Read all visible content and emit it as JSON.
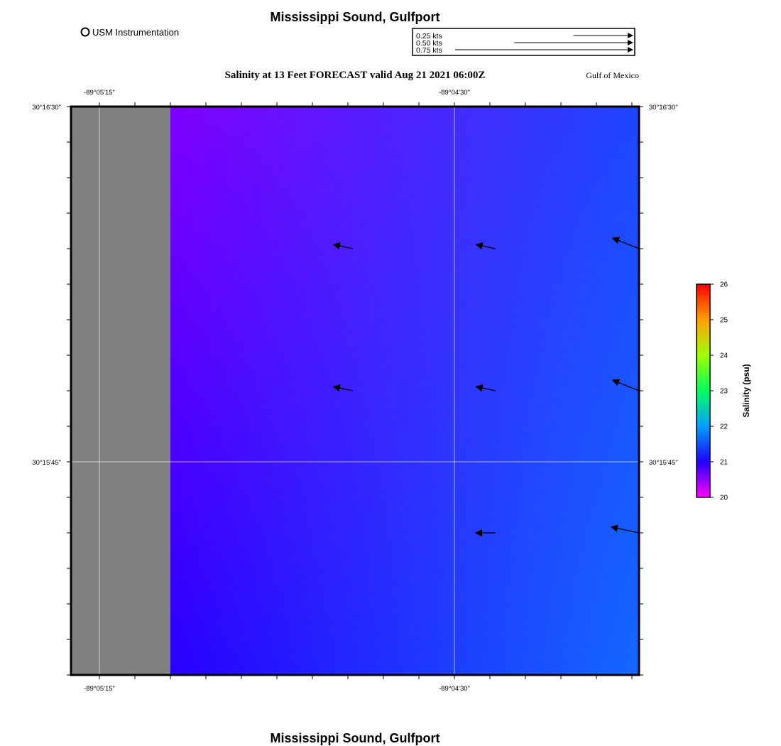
{
  "header": {
    "title": "Mississippi Sound, Gulfport",
    "instrument_label": "USM Instrumentation",
    "subtitle": "Salinity at 13 Feet FORECAST valid Aug 21 2021 06:00Z",
    "region_label": "Gulf of Mexico"
  },
  "footer": {
    "title": "Mississippi Sound, Gulfport"
  },
  "vector_legend": {
    "items": [
      {
        "label": "0.25 kts",
        "speed_kts": 0.25
      },
      {
        "label": "0.50 kts",
        "speed_kts": 0.5
      },
      {
        "label": "0.75 kts",
        "speed_kts": 0.75
      }
    ]
  },
  "axes": {
    "x_ticks": [
      "-89°05'15\"",
      "-89°04'30\""
    ],
    "y_ticks": [
      "30°16'30\"",
      "30°15'45\""
    ]
  },
  "colorbar": {
    "label": "Salinity (psu)",
    "ticks": [
      "20",
      "21",
      "22",
      "23",
      "24",
      "25",
      "26"
    ],
    "min": 20,
    "max": 26
  },
  "colors": {
    "land": "#808080",
    "water_nw": "#8000ff",
    "water_sw": "#2800ff",
    "water_se": "#1468ff",
    "water_ne": "#1e46ff",
    "frame": "#000000",
    "gridline": "#ffffff"
  },
  "current_vectors": [
    {
      "row": 1,
      "col": 1,
      "direction": "west-northwest"
    },
    {
      "row": 1,
      "col": 2,
      "direction": "west-northwest"
    },
    {
      "row": 1,
      "col": 3,
      "direction": "northwest"
    },
    {
      "row": 2,
      "col": 1,
      "direction": "west-northwest"
    },
    {
      "row": 2,
      "col": 2,
      "direction": "west-northwest"
    },
    {
      "row": 2,
      "col": 3,
      "direction": "northwest"
    },
    {
      "row": 3,
      "col": 2,
      "direction": "west"
    },
    {
      "row": 3,
      "col": 3,
      "direction": "west-northwest"
    }
  ]
}
